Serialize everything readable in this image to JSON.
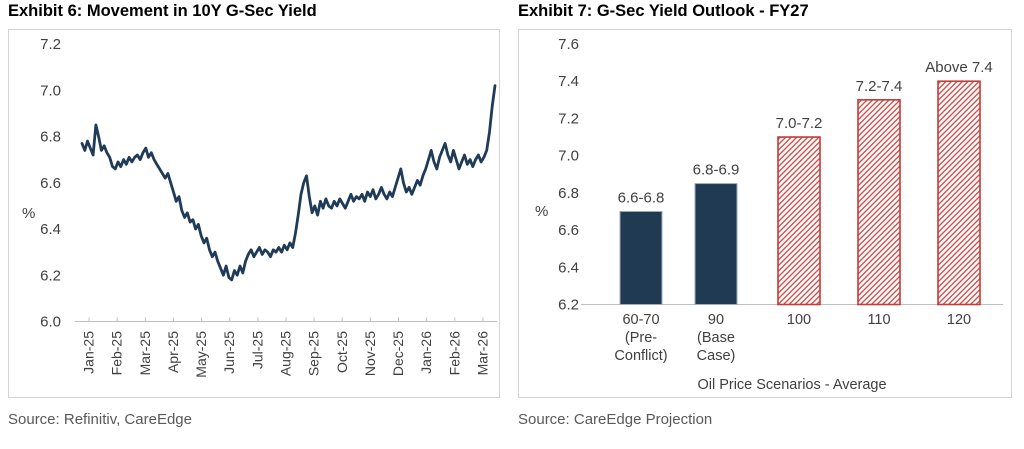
{
  "page": {
    "left_title": "Exhibit 6: Movement in 10Y G-Sec Yield",
    "right_title": "Exhibit 7: G-Sec Yield Outlook - FY27",
    "left_source": "Source: Refinitiv, CareEdge",
    "right_source": "Source: CareEdge Projection"
  },
  "chart_data": [
    {
      "type": "line",
      "title": "Exhibit 6: Movement in 10Y G-Sec Yield",
      "xlabel": "",
      "ylabel": "%",
      "ylim": [
        6.0,
        7.2
      ],
      "yticks": [
        7.2,
        7.0,
        6.8,
        6.6,
        6.4,
        6.2,
        6.0
      ],
      "x_tick_labels": [
        "Jan-25",
        "Feb-25",
        "Mar-25",
        "Apr-25",
        "May-25",
        "Jun-25",
        "Jul-25",
        "Aug-25",
        "Sep-25",
        "Oct-25",
        "Nov-25",
        "Dec-25",
        "Jan-26",
        "Feb-26",
        "Mar-26"
      ],
      "grid": false,
      "legend": "none",
      "line_color": "#1F3B57",
      "series": [
        {
          "name": "10Y G-Sec Yield (%)",
          "sampling": "evenly spaced observations, Jan-25 to Mar-26",
          "values": [
            6.77,
            6.74,
            6.78,
            6.75,
            6.72,
            6.85,
            6.8,
            6.74,
            6.76,
            6.73,
            6.71,
            6.67,
            6.66,
            6.69,
            6.67,
            6.7,
            6.68,
            6.71,
            6.69,
            6.71,
            6.72,
            6.7,
            6.73,
            6.75,
            6.71,
            6.73,
            6.7,
            6.68,
            6.66,
            6.64,
            6.62,
            6.64,
            6.6,
            6.56,
            6.52,
            6.54,
            6.48,
            6.45,
            6.47,
            6.43,
            6.44,
            6.4,
            6.42,
            6.37,
            6.34,
            6.36,
            6.31,
            6.28,
            6.3,
            6.26,
            6.23,
            6.2,
            6.24,
            6.19,
            6.18,
            6.22,
            6.2,
            6.24,
            6.21,
            6.26,
            6.29,
            6.31,
            6.28,
            6.3,
            6.32,
            6.29,
            6.31,
            6.3,
            6.28,
            6.31,
            6.3,
            6.32,
            6.3,
            6.33,
            6.31,
            6.34,
            6.32,
            6.38,
            6.46,
            6.55,
            6.6,
            6.63,
            6.54,
            6.47,
            6.5,
            6.46,
            6.52,
            6.49,
            6.53,
            6.5,
            6.49,
            6.52,
            6.5,
            6.53,
            6.51,
            6.49,
            6.52,
            6.55,
            6.52,
            6.54,
            6.53,
            6.55,
            6.52,
            6.56,
            6.54,
            6.57,
            6.53,
            6.55,
            6.58,
            6.55,
            6.53,
            6.56,
            6.54,
            6.58,
            6.62,
            6.66,
            6.6,
            6.56,
            6.58,
            6.55,
            6.58,
            6.61,
            6.59,
            6.63,
            6.66,
            6.7,
            6.74,
            6.69,
            6.66,
            6.71,
            6.74,
            6.77,
            6.72,
            6.69,
            6.74,
            6.7,
            6.66,
            6.69,
            6.72,
            6.68,
            6.7,
            6.67,
            6.7,
            6.72,
            6.69,
            6.71,
            6.74,
            6.82,
            6.93,
            7.02
          ]
        }
      ],
      "source": "Source: Refinitiv, CareEdge"
    },
    {
      "type": "bar",
      "title": "Exhibit 7: G-Sec Yield Outlook - FY27",
      "xlabel": "Oil Price Scenarios - Average",
      "ylabel": "%",
      "ylim": [
        6.2,
        7.6
      ],
      "yticks": [
        7.6,
        7.4,
        7.2,
        7.0,
        6.8,
        6.6,
        6.4,
        6.2
      ],
      "grid": false,
      "legend": "none",
      "categories": [
        "60-70\n(Pre-\nConflict)",
        "90\n(Base\nCase)",
        "100",
        "110",
        "120"
      ],
      "values": [
        6.7,
        6.85,
        7.1,
        7.3,
        7.4
      ],
      "bar_labels": [
        "6.6-6.8",
        "6.8-6.9",
        "7.0-7.2",
        "7.2-7.4",
        "Above 7.4"
      ],
      "bar_styles": [
        "solid",
        "solid",
        "hatched",
        "hatched",
        "hatched"
      ],
      "colors": {
        "solid_fill": "#1F3A52",
        "solid_border": "#9FAEBC",
        "hatch_line": "#D6504B",
        "hatch_border": "#C43A36"
      },
      "source": "Source: CareEdge Projection"
    }
  ]
}
